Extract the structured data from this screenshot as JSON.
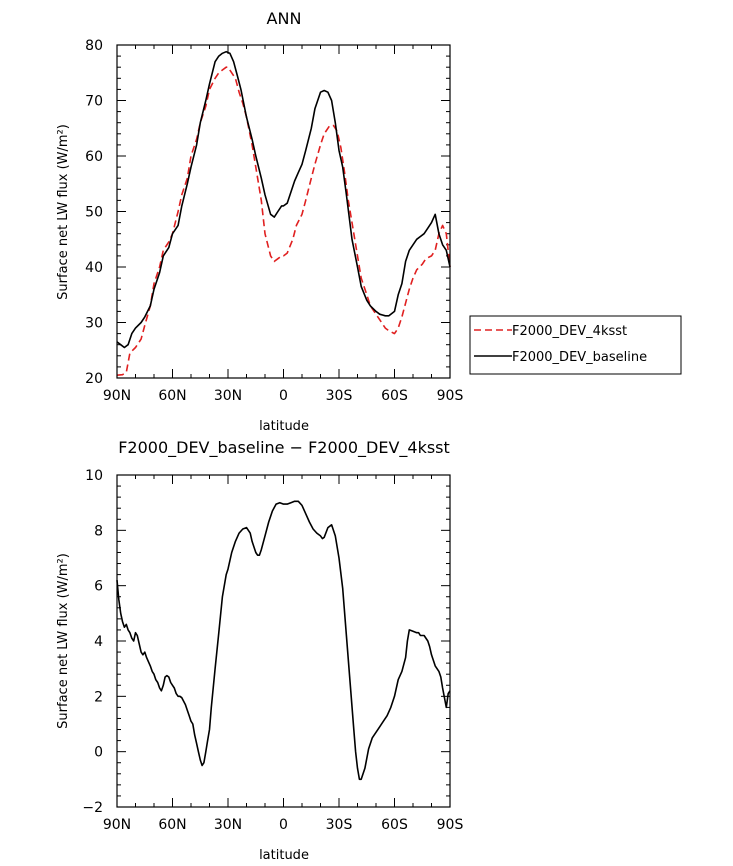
{
  "chart_data": [
    {
      "type": "line",
      "title": "ANN",
      "xlabel": "latitude",
      "ylabel": "Surface net LW flux (W/m²)",
      "ylim": [
        20,
        80
      ],
      "yticks": [
        20,
        30,
        40,
        50,
        60,
        70,
        80
      ],
      "xlim": [
        90,
        -90
      ],
      "xticks": [
        90,
        60,
        30,
        0,
        -30,
        -60,
        -90
      ],
      "xticklabels": [
        "90N",
        "60N",
        "30N",
        "0",
        "30S",
        "60S",
        "90S"
      ],
      "legend_position": "right",
      "series": [
        {
          "name": "F2000_DEV_4ksst",
          "color": "#e02020",
          "dash": "dashed",
          "x": [
            90,
            87,
            85,
            83,
            80,
            77,
            75,
            72,
            70,
            67,
            65,
            62,
            60,
            57,
            55,
            52,
            50,
            47,
            45,
            42,
            40,
            37,
            35,
            33,
            31,
            30,
            28,
            26,
            24,
            22,
            20,
            17,
            15,
            12,
            10,
            7,
            5,
            3,
            1,
            0,
            -2,
            -5,
            -7,
            -10,
            -12,
            -15,
            -17,
            -20,
            -22,
            -25,
            -27,
            -29,
            -31,
            -33,
            -35,
            -37,
            -40,
            -42,
            -45,
            -47,
            -50,
            -52,
            -55,
            -57,
            -60,
            -62,
            -64,
            -66,
            -68,
            -70,
            -72,
            -75,
            -77,
            -80,
            -82,
            -84,
            -86,
            -88,
            -90
          ],
          "values": [
            20.5,
            20.6,
            21,
            24.5,
            25.5,
            27,
            29.5,
            33,
            37,
            40,
            43,
            44.5,
            46,
            50,
            53,
            56,
            60,
            63,
            66,
            69,
            72,
            74,
            75,
            75.5,
            76,
            76,
            75,
            74,
            71.5,
            69.5,
            67,
            62,
            58,
            52,
            46,
            42,
            41,
            41.5,
            42,
            42,
            42.5,
            45,
            47.5,
            49.5,
            52,
            56,
            58.5,
            62,
            64,
            65.5,
            65.5,
            64.5,
            61.5,
            57,
            52,
            48,
            42,
            38,
            35,
            33,
            31.5,
            30.5,
            29,
            28.5,
            28,
            29,
            31,
            33.5,
            36,
            38,
            39.5,
            40.5,
            41.5,
            42,
            43,
            46,
            47.5,
            46,
            40
          ]
        },
        {
          "name": "F2000_DEV_baseline",
          "color": "#000000",
          "dash": "solid",
          "x": [
            90,
            88,
            86,
            84,
            82,
            80,
            77,
            75,
            72,
            70,
            67,
            65,
            62,
            60,
            57,
            55,
            52,
            50,
            47,
            45,
            42,
            40,
            37,
            35,
            33,
            31,
            29,
            27,
            25,
            23,
            20,
            17,
            15,
            12,
            10,
            7,
            5,
            3,
            1,
            0,
            -2,
            -4,
            -6,
            -8,
            -10,
            -12,
            -15,
            -17,
            -20,
            -22,
            -24,
            -26,
            -28,
            -30,
            -32,
            -34,
            -37,
            -40,
            -42,
            -45,
            -47,
            -50,
            -52,
            -55,
            -57,
            -60,
            -62,
            -64,
            -66,
            -68,
            -70,
            -72,
            -74,
            -76,
            -78,
            -80,
            -82,
            -84,
            -86,
            -88,
            -90
          ],
          "values": [
            26.5,
            26,
            25.5,
            26,
            28,
            29,
            30,
            31,
            33,
            36,
            39,
            42,
            43.5,
            46,
            47.5,
            51,
            55,
            58,
            62,
            66,
            70,
            73,
            77,
            78,
            78.5,
            78.8,
            78.5,
            77,
            74.5,
            72,
            67,
            63,
            60,
            56,
            53,
            49.5,
            49,
            50,
            51,
            51,
            51.5,
            53.5,
            55.5,
            57,
            58.5,
            61,
            65,
            68.5,
            71.5,
            71.8,
            71.5,
            70,
            66,
            61,
            58,
            53,
            45,
            40,
            36.5,
            34,
            33,
            32,
            31.5,
            31.2,
            31.2,
            32,
            35,
            37,
            41,
            43,
            44,
            45,
            45.5,
            46,
            47,
            48,
            49.5,
            46,
            44,
            43,
            40
          ]
        }
      ]
    },
    {
      "type": "line",
      "title": "F2000_DEV_baseline − F2000_DEV_4ksst",
      "xlabel": "latitude",
      "ylabel": "Surface net LW flux (W/m²)",
      "ylim": [
        -2,
        10
      ],
      "yticks": [
        -2,
        0,
        2,
        4,
        6,
        8,
        10
      ],
      "xlim": [
        90,
        -90
      ],
      "xticks": [
        90,
        60,
        30,
        0,
        -30,
        -60,
        -90
      ],
      "xticklabels": [
        "90N",
        "60N",
        "30N",
        "0",
        "30S",
        "60S",
        "90S"
      ],
      "series": [
        {
          "color": "#000000",
          "dash": "solid",
          "x": [
            90,
            89,
            88,
            87,
            86,
            85,
            84,
            83,
            82,
            81,
            80,
            79,
            78,
            77,
            76,
            75,
            74,
            72,
            71,
            70,
            69,
            68,
            67,
            66,
            65,
            64,
            63,
            62,
            61,
            60,
            59,
            58,
            57,
            56,
            55,
            53,
            52,
            51,
            50,
            49,
            48,
            47,
            46,
            45,
            44,
            43,
            42,
            41,
            40,
            39,
            37,
            35,
            33,
            31,
            30,
            28,
            26,
            24,
            22,
            20,
            18,
            17,
            15,
            14,
            13,
            12,
            10,
            8,
            6,
            4,
            2,
            0,
            -2,
            -4,
            -6,
            -8,
            -10,
            -12,
            -14,
            -16,
            -18,
            -20,
            -21,
            -22,
            -24,
            -26,
            -28,
            -30,
            -32,
            -34,
            -36,
            -38,
            -39,
            -40,
            -41,
            -42,
            -44,
            -46,
            -48,
            -50,
            -52,
            -54,
            -56,
            -58,
            -60,
            -62,
            -64,
            -66,
            -67,
            -68,
            -70,
            -72,
            -73,
            -74,
            -76,
            -78,
            -79,
            -80,
            -82,
            -84,
            -85,
            -86,
            -88,
            -89,
            -90
          ],
          "values": [
            6.2,
            5.5,
            5,
            4.7,
            4.5,
            4.6,
            4.4,
            4.3,
            4.1,
            4,
            4.3,
            4.2,
            3.9,
            3.6,
            3.5,
            3.6,
            3.4,
            3.1,
            2.9,
            2.8,
            2.6,
            2.5,
            2.3,
            2.2,
            2.4,
            2.7,
            2.75,
            2.7,
            2.5,
            2.4,
            2.3,
            2.1,
            2,
            2,
            1.95,
            1.7,
            1.5,
            1.3,
            1.1,
            1,
            0.6,
            0.3,
            0,
            -0.3,
            -0.5,
            -0.4,
            0,
            0.4,
            0.8,
            1.6,
            3,
            4.3,
            5.6,
            6.4,
            6.6,
            7.2,
            7.6,
            7.9,
            8.05,
            8.1,
            7.9,
            7.6,
            7.2,
            7.1,
            7.1,
            7.3,
            7.8,
            8.3,
            8.7,
            8.95,
            9,
            8.95,
            8.95,
            9,
            9.05,
            9.05,
            8.9,
            8.6,
            8.3,
            8.05,
            7.9,
            7.8,
            7.7,
            7.75,
            8.1,
            8.2,
            7.8,
            7,
            5.9,
            4.2,
            2.5,
            0.8,
            0,
            -0.6,
            -1,
            -1,
            -0.6,
            0.1,
            0.5,
            0.7,
            0.9,
            1.1,
            1.3,
            1.6,
            2,
            2.6,
            2.9,
            3.4,
            4,
            4.4,
            4.35,
            4.3,
            4.3,
            4.2,
            4.2,
            4,
            3.8,
            3.5,
            3.1,
            2.9,
            2.7,
            2.3,
            1.6,
            2.1,
            2.2
          ]
        }
      ]
    }
  ]
}
